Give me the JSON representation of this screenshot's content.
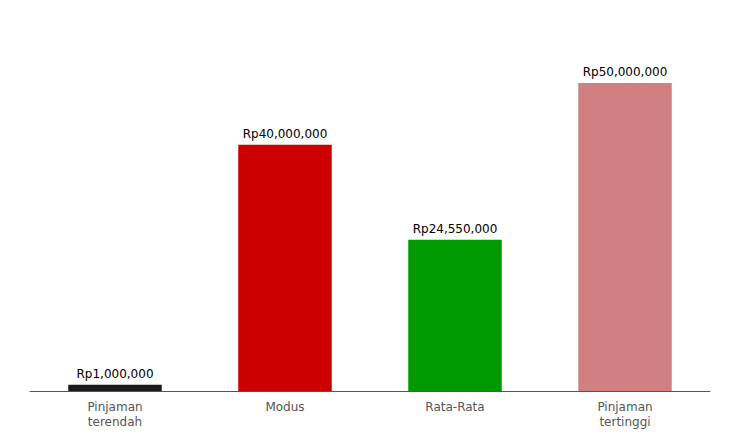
{
  "chart_data": {
    "type": "bar",
    "categories": [
      "Pinjaman\nterendah",
      "Modus",
      "Rata-Rata",
      "Pinjaman\ntertinggi"
    ],
    "values": [
      1000000,
      40000000,
      24550000,
      50000000
    ],
    "value_labels": [
      "Rp1,000,000",
      "Rp40,000,000",
      "Rp24,550,000",
      "Rp50,000,000"
    ],
    "colors": [
      "#1a1a1a",
      "#cc0000",
      "#009900",
      "#d08080"
    ],
    "ylim": [
      0,
      57000000
    ],
    "data_labels": true,
    "tick_labels": "x",
    "grid": false
  }
}
